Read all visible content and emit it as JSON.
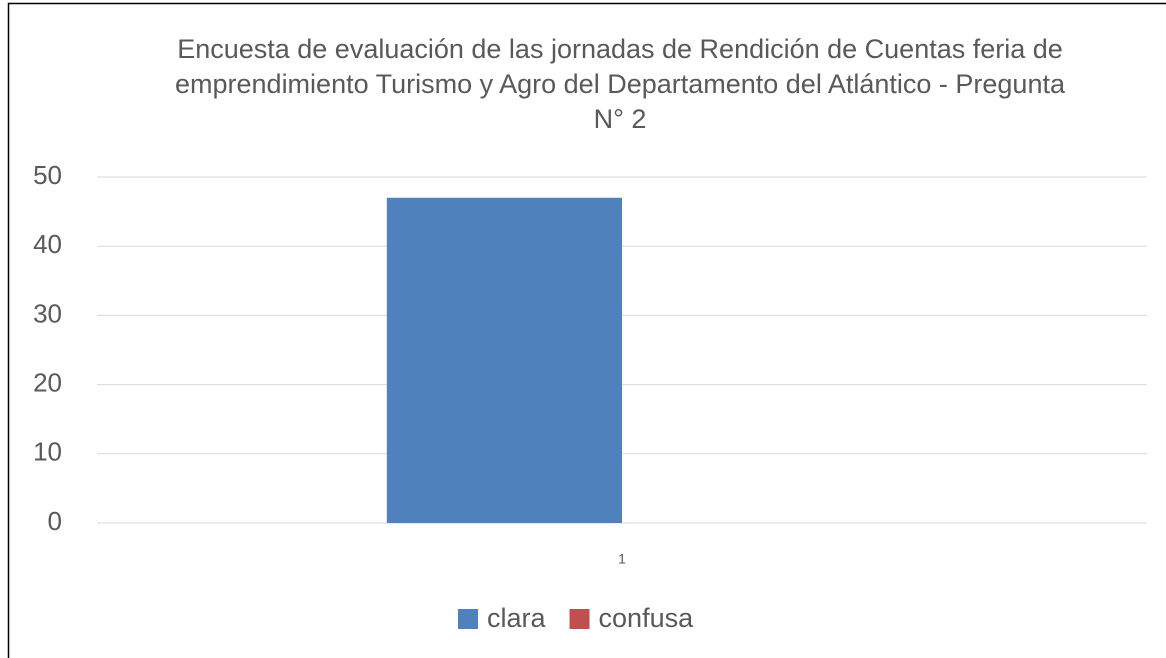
{
  "chart_data": {
    "type": "bar",
    "title": "Encuesta de evaluación de las jornadas de Rendición de Cuentas feria de emprendimiento Turismo y Agro del Departamento del Atlántico - Pregunta N° 2",
    "categories": [
      "1"
    ],
    "series": [
      {
        "name": "clara",
        "color": "#4f81bd",
        "values": [
          47
        ]
      },
      {
        "name": "confusa",
        "color": "#c0504d",
        "values": [
          0
        ]
      }
    ],
    "ylim": [
      0,
      50
    ],
    "yticks": [
      0,
      10,
      20,
      30,
      40,
      50
    ],
    "grid": true,
    "legend": "bottom"
  }
}
